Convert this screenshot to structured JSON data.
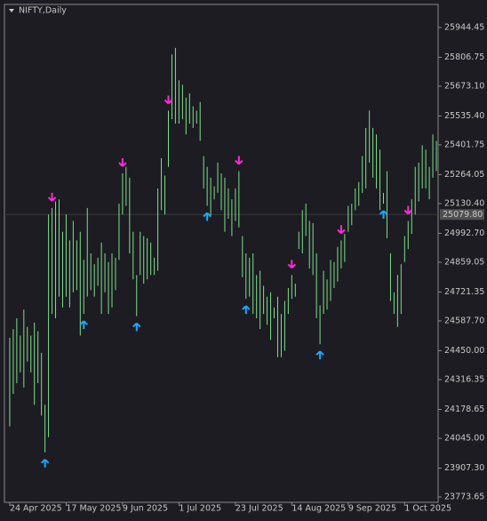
{
  "chart_data": {
    "type": "hilo",
    "title": "NIFTY,Daily",
    "color": "#7ee08a",
    "background": "#1c1c22",
    "high": [
      24510,
      24550,
      24600,
      24520,
      24640,
      24560,
      24520,
      24580,
      24540,
      24440,
      24200,
      25080,
      25110,
      25140,
      25150,
      25000,
      25080,
      24960,
      25050,
      24960,
      25000,
      24870,
      25110,
      24900,
      24850,
      24880,
      24950,
      24900,
      24860,
      24900,
      24880,
      25130,
      25270,
      25300,
      25250,
      25000,
      24800,
      25000,
      24980,
      24970,
      24950,
      24880,
      25200,
      25340,
      25260,
      25560,
      25820,
      25850,
      25700,
      25680,
      25620,
      25640,
      25580,
      25560,
      25600,
      25350,
      25300,
      25250,
      25210,
      25320,
      25270,
      25250,
      25200,
      25150,
      25200,
      25280,
      24980,
      24900,
      24880,
      24900,
      24800,
      24820,
      24750,
      24700,
      24720,
      24650,
      24700,
      24620,
      24680,
      24740,
      24800,
      24760,
      25000,
      25100,
      25130,
      25050,
      25040,
      24900,
      24660,
      24820,
      24780,
      24870,
      24860,
      24930,
      24960,
      24990,
      25120,
      25130,
      25200,
      25230,
      25350,
      25480,
      25560,
      25480,
      25450,
      25380,
      25180,
      25280,
      24900,
      24720,
      24800,
      24850,
      24980,
      25050,
      25150,
      25300,
      25320,
      25400,
      25380,
      25300,
      25450,
      25420
    ],
    "low": [
      24100,
      24250,
      24300,
      24350,
      24280,
      24400,
      24350,
      24200,
      24300,
      24150,
      23980,
      24050,
      24620,
      24600,
      24700,
      24650,
      24700,
      24650,
      24720,
      24730,
      24520,
      24620,
      24700,
      24730,
      24700,
      24750,
      24620,
      24720,
      24620,
      24650,
      24730,
      24870,
      25080,
      25120,
      24900,
      24780,
      24610,
      24800,
      24760,
      24780,
      24800,
      24800,
      24820,
      25100,
      25080,
      25300,
      25520,
      25500,
      25500,
      25520,
      25450,
      25500,
      25480,
      25500,
      25420,
      25200,
      25120,
      25070,
      25150,
      25180,
      25100,
      25000,
      25060,
      24980,
      25050,
      25020,
      24790,
      24690,
      24700,
      24620,
      24600,
      24550,
      24620,
      24570,
      24500,
      24600,
      24420,
      24420,
      24450,
      24620,
      24690,
      24700,
      24920,
      24900,
      24980,
      24830,
      24800,
      24600,
      24480,
      24620,
      24640,
      24680,
      24740,
      24770,
      24830,
      24860,
      25000,
      25030,
      25100,
      25120,
      25180,
      25200,
      25320,
      25250,
      25200,
      25100,
      25130,
      24970,
      24680,
      24620,
      24560,
      24620,
      24860,
      24920,
      24990,
      25080,
      25140,
      25200,
      25200,
      25150,
      25250,
      25280
    ],
    "buy_signals": [
      10,
      21,
      36,
      56,
      67,
      88,
      106
    ],
    "sell_signals": [
      12,
      32,
      45,
      65,
      80,
      94,
      113
    ],
    "buy_color": "#1ea7ff",
    "sell_color": "#ff2bd6",
    "xlim": [
      -1.5,
      121.5
    ],
    "xticks": [
      {
        "value": 0,
        "label": "24 Apr 2025"
      },
      {
        "value": 16,
        "label": "17 May 2025"
      },
      {
        "value": 32,
        "label": "9 Jun 2025"
      },
      {
        "value": 48,
        "label": "1 Jul 2025"
      },
      {
        "value": 64,
        "label": "23 Jul 2025"
      },
      {
        "value": 80,
        "label": "14 Aug 2025"
      },
      {
        "value": 96,
        "label": "9 Sep 2025"
      },
      {
        "value": 112,
        "label": "1 Oct 2025"
      }
    ],
    "ylim": [
      23749,
      26051
    ],
    "yticks": [
      25944.45,
      25806.75,
      {
        "value": 25673.1,
        "label": "25673.10"
      },
      {
        "value": 25535.4,
        "label": "25535.40"
      },
      25401.75,
      25264.05,
      {
        "value": 25130.4,
        "label": "25130.40"
      },
      {
        "value": 24992.7,
        "label": "24992.70"
      },
      24859.05,
      24721.35,
      {
        "value": 24587.7,
        "label": "24587.70"
      },
      {
        "value": 24450,
        "label": "24450.00"
      },
      24316.35,
      24178.65,
      {
        "value": 24045,
        "label": "24045.00"
      },
      {
        "value": 23907.3,
        "label": "23907.30"
      },
      23773.65
    ],
    "last_price": {
      "value": 25079.8,
      "label": "25079.80"
    }
  }
}
